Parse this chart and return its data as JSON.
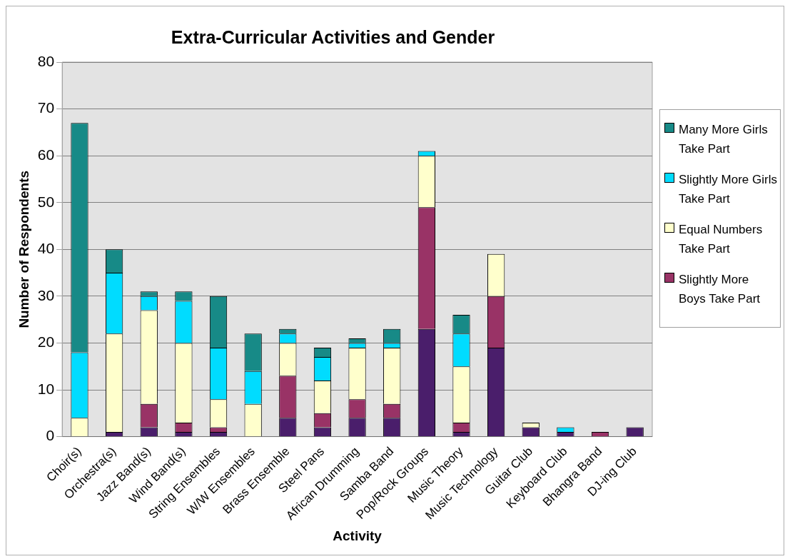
{
  "chart_data": {
    "type": "bar",
    "title": "Extra-Curricular Activities and Gender",
    "xlabel": "Activity",
    "ylabel": "Number of Respondents",
    "categories": [
      "Choir(s)",
      "Orchestra(s)",
      "Jazz Band(s)",
      "Wind Band(s)",
      "String Ensembles",
      "W/W Ensembles",
      "Brass Ensemble",
      "Steel Pans",
      "African Drumming",
      "Samba Band",
      "Pop/Rock Groups",
      "Music Theory",
      "Music Technology",
      "Guitar Club",
      "Keyboard Club",
      "Bhangra Band",
      "DJ-ing Club"
    ],
    "stacked": true,
    "ylim": [
      0,
      80
    ],
    "yticks": [
      0,
      10,
      20,
      30,
      40,
      50,
      60,
      70,
      80
    ],
    "grid": "y",
    "legend": "right",
    "series": [
      {
        "color": "#4a1e6b",
        "values": [
          0,
          1,
          2,
          1,
          1,
          0,
          4,
          2,
          4,
          4,
          23,
          1,
          19,
          2,
          1,
          0,
          2
        ]
      },
      {
        "name": "Slightly More Boys Take Part",
        "color": "#993366",
        "values": [
          0,
          0,
          5,
          2,
          1,
          0,
          9,
          3,
          4,
          3,
          26,
          2,
          11,
          0,
          0,
          1,
          0
        ]
      },
      {
        "name": "Equal Numbers Take Part",
        "color": "#ffffcc",
        "values": [
          4,
          21,
          20,
          17,
          6,
          7,
          7,
          7,
          11,
          12,
          11,
          12,
          9,
          1,
          0,
          0,
          0
        ]
      },
      {
        "name": "Slightly More Girls Take Part",
        "color": "#00dcff",
        "values": [
          14,
          13,
          3,
          9,
          11,
          7,
          2,
          5,
          1,
          1,
          1,
          7,
          0,
          0,
          1,
          0,
          0
        ]
      },
      {
        "name": "Many More Girls Take Part",
        "color": "#178a87",
        "values": [
          49,
          5,
          1,
          2,
          11,
          8,
          1,
          2,
          1,
          3,
          0,
          4,
          0,
          0,
          0,
          0,
          0
        ]
      }
    ]
  }
}
